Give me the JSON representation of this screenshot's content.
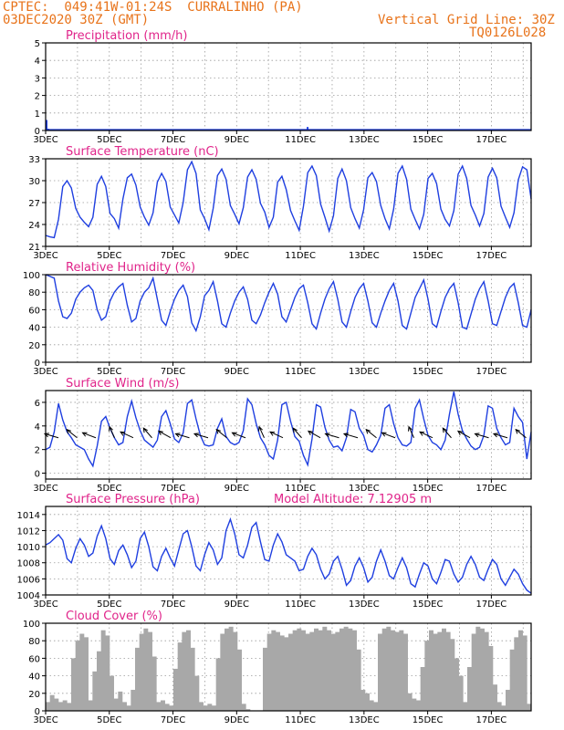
{
  "header": {
    "station_line": "CPTEC:  049:41W-01:24S  CURRALINHO (PA)",
    "date_line": "03DEC2020 30Z (GMT)",
    "grid_line": "Vertical Grid Line: 30Z",
    "code": "TQ0126L028",
    "text_color": "#e8731a",
    "title_color": "#e0248a",
    "line_color": "#1f3fe0",
    "cloud_color": "#a8a8a8"
  },
  "x_ticks": [
    "3DEC",
    "5DEC",
    "7DEC",
    "9DEC",
    "11DEC",
    "13DEC",
    "15DEC",
    "17DEC"
  ],
  "chart_data": [
    {
      "type": "bar",
      "title": "Precipitation (mm/h)",
      "ylim": [
        0,
        5
      ],
      "yticks": [
        "0",
        "1",
        "2",
        "3",
        "4",
        "5"
      ],
      "x_days": [
        0.0,
        0.05,
        8.2
      ],
      "values": [
        0.6,
        0.1,
        0.2
      ]
    },
    {
      "type": "line",
      "title": "Surface Temperature (nC)",
      "ylim": [
        21,
        33
      ],
      "yticks": [
        "21",
        "24",
        "27",
        "30",
        "33"
      ],
      "values": [
        22.5,
        22.3,
        22.2,
        24.7,
        29.2,
        30.0,
        29.0,
        26.2,
        25.0,
        24.3,
        23.7,
        25.0,
        29.5,
        30.6,
        29.2,
        25.5,
        24.8,
        23.5,
        27.5,
        30.4,
        30.9,
        29.4,
        26.4,
        25.0,
        23.9,
        25.6,
        29.8,
        31.0,
        29.9,
        26.4,
        25.3,
        24.2,
        27.0,
        31.5,
        32.6,
        31.0,
        26.0,
        24.8,
        23.3,
        26.2,
        30.7,
        31.6,
        30.2,
        26.6,
        25.4,
        24.1,
        26.3,
        30.5,
        31.5,
        30.2,
        26.9,
        25.7,
        23.6,
        25.0,
        29.8,
        30.6,
        28.8,
        25.9,
        24.5,
        23.2,
        26.5,
        31.1,
        32.0,
        30.7,
        26.8,
        25.0,
        23.1,
        25.2,
        30.3,
        31.6,
        30.0,
        26.3,
        24.8,
        23.5,
        26.0,
        30.4,
        31.1,
        29.9,
        26.6,
        24.8,
        23.4,
        26.1,
        31.0,
        32.0,
        30.2,
        26.1,
        24.7,
        23.4,
        25.4,
        30.3,
        31.0,
        29.6,
        26.1,
        24.7,
        23.8,
        25.9,
        30.9,
        32.0,
        30.3,
        26.6,
        25.3,
        23.8,
        25.5,
        30.5,
        31.7,
        30.4,
        26.5,
        25.0,
        23.6,
        25.6,
        30.1,
        31.9,
        31.5,
        27.5
      ]
    },
    {
      "type": "line",
      "title": "Relative Humidity (%)",
      "ylim": [
        0,
        100
      ],
      "yticks": [
        "0",
        "20",
        "40",
        "60",
        "80",
        "100"
      ],
      "values": [
        100,
        98,
        96,
        70,
        52,
        50,
        56,
        72,
        80,
        85,
        88,
        82,
        60,
        48,
        52,
        70,
        80,
        86,
        90,
        65,
        46,
        50,
        70,
        80,
        85,
        96,
        72,
        48,
        42,
        58,
        72,
        82,
        88,
        75,
        45,
        36,
        52,
        76,
        82,
        92,
        70,
        44,
        40,
        56,
        70,
        80,
        86,
        72,
        48,
        44,
        54,
        68,
        80,
        90,
        78,
        52,
        46,
        60,
        74,
        84,
        88,
        68,
        44,
        38,
        56,
        72,
        84,
        92,
        72,
        46,
        40,
        58,
        74,
        84,
        90,
        70,
        45,
        40,
        56,
        70,
        82,
        90,
        70,
        42,
        38,
        56,
        74,
        84,
        94,
        72,
        44,
        40,
        58,
        74,
        84,
        90,
        68,
        40,
        38,
        55,
        72,
        84,
        92,
        70,
        44,
        42,
        58,
        74,
        85,
        90,
        68,
        42,
        40,
        60
      ]
    },
    {
      "type": "line",
      "title": "Surface Wind (m/s)",
      "ylim": [
        -0.5,
        7
      ],
      "yticks": [
        "0",
        "2",
        "4",
        "6"
      ],
      "values": [
        2.0,
        2.2,
        3.5,
        5.9,
        4.5,
        3.5,
        3.0,
        2.4,
        2.2,
        2.0,
        1.2,
        0.6,
        2.3,
        4.4,
        4.8,
        3.8,
        3.0,
        2.4,
        2.6,
        4.8,
        6.1,
        4.7,
        3.6,
        2.8,
        2.5,
        2.2,
        2.8,
        4.8,
        5.3,
        4.2,
        2.9,
        2.6,
        3.4,
        5.9,
        6.2,
        4.6,
        3.2,
        2.4,
        2.3,
        2.4,
        3.8,
        4.6,
        3.1,
        2.6,
        2.4,
        2.6,
        3.6,
        6.3,
        5.8,
        4.2,
        3.0,
        2.4,
        1.5,
        1.2,
        2.8,
        5.8,
        6.0,
        4.4,
        3.1,
        2.7,
        1.5,
        0.7,
        2.9,
        5.8,
        5.6,
        3.9,
        2.8,
        2.2,
        2.3,
        1.9,
        3.0,
        5.4,
        5.2,
        3.8,
        3.2,
        2.0,
        1.8,
        2.4,
        3.2,
        5.5,
        5.8,
        4.2,
        3.0,
        2.4,
        2.3,
        2.6,
        5.5,
        6.2,
        4.6,
        3.2,
        2.6,
        2.4,
        2.0,
        2.8,
        5.0,
        6.9,
        5.0,
        3.6,
        2.9,
        2.3,
        2.0,
        2.2,
        3.2,
        5.7,
        5.5,
        3.8,
        3.0,
        2.4,
        2.6,
        5.5,
        4.8,
        4.3,
        1.2,
        3.5
      ]
    },
    {
      "type": "line",
      "title": "Surface Pressure (hPa)",
      "annotation": "Model Altitude: 7.12905 m",
      "ylim": [
        1004,
        1015
      ],
      "yticks": [
        "1004",
        "1006",
        "1008",
        "1010",
        "1012",
        "1014"
      ],
      "values": [
        1010.2,
        1010.5,
        1011.0,
        1011.5,
        1010.8,
        1008.5,
        1008.0,
        1009.8,
        1011.0,
        1010.2,
        1008.8,
        1009.2,
        1011.3,
        1012.6,
        1011.0,
        1008.5,
        1007.8,
        1009.5,
        1010.2,
        1009.0,
        1007.4,
        1008.2,
        1011.0,
        1011.8,
        1010.0,
        1007.5,
        1007.0,
        1008.8,
        1009.8,
        1008.6,
        1007.6,
        1009.6,
        1011.6,
        1012.0,
        1010.0,
        1007.6,
        1007.0,
        1009.0,
        1010.5,
        1009.6,
        1007.8,
        1008.6,
        1012.0,
        1013.4,
        1011.6,
        1009.0,
        1008.6,
        1010.2,
        1012.4,
        1013.0,
        1010.6,
        1008.4,
        1008.2,
        1010.2,
        1011.6,
        1010.6,
        1009.0,
        1008.6,
        1008.2,
        1007.0,
        1007.2,
        1008.8,
        1009.8,
        1009.0,
        1007.2,
        1006.0,
        1006.6,
        1008.2,
        1008.8,
        1007.2,
        1005.2,
        1005.8,
        1007.6,
        1008.6,
        1007.4,
        1005.6,
        1006.2,
        1008.2,
        1009.6,
        1008.2,
        1006.4,
        1006.0,
        1007.4,
        1008.6,
        1007.4,
        1005.4,
        1005.0,
        1006.6,
        1008.0,
        1007.6,
        1006.0,
        1005.4,
        1006.8,
        1008.4,
        1008.2,
        1006.6,
        1005.6,
        1006.2,
        1007.8,
        1008.8,
        1007.8,
        1006.2,
        1005.8,
        1007.2,
        1008.4,
        1007.8,
        1006.0,
        1005.2,
        1006.2,
        1007.2,
        1006.6,
        1005.4,
        1004.6,
        1004.2
      ]
    },
    {
      "type": "area",
      "title": "Cloud Cover (%)",
      "ylim": [
        0,
        100
      ],
      "yticks": [
        "0",
        "20",
        "40",
        "60",
        "80",
        "100"
      ],
      "values": [
        10,
        18,
        14,
        10,
        12,
        9,
        60,
        80,
        88,
        84,
        12,
        45,
        68,
        92,
        86,
        40,
        14,
        22,
        10,
        6,
        24,
        72,
        88,
        94,
        90,
        62,
        10,
        12,
        8,
        6,
        48,
        78,
        90,
        92,
        72,
        40,
        10,
        6,
        8,
        6,
        60,
        88,
        94,
        96,
        90,
        70,
        8,
        2,
        0,
        0,
        0,
        72,
        88,
        92,
        90,
        86,
        84,
        88,
        92,
        94,
        92,
        88,
        90,
        94,
        92,
        96,
        92,
        88,
        90,
        94,
        96,
        94,
        92,
        70,
        24,
        20,
        12,
        10,
        88,
        94,
        96,
        92,
        90,
        92,
        88,
        20,
        14,
        12,
        50,
        80,
        92,
        88,
        90,
        94,
        90,
        82,
        60,
        40,
        10,
        50,
        88,
        96,
        94,
        90,
        74,
        30,
        10,
        6,
        24,
        70,
        84,
        92,
        86,
        8
      ]
    }
  ]
}
